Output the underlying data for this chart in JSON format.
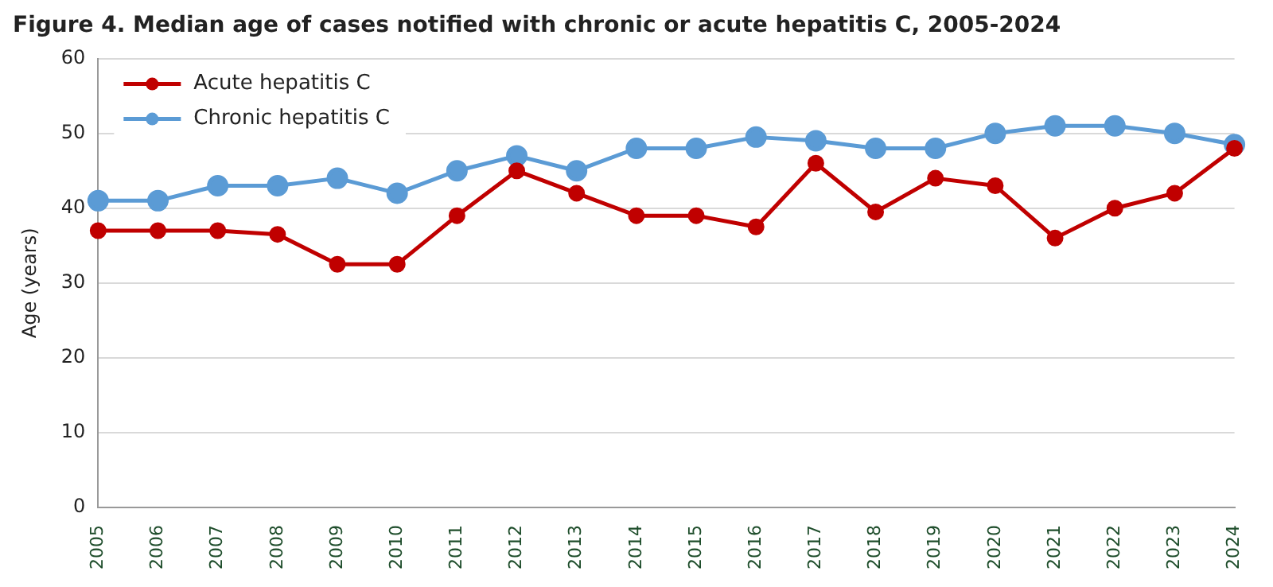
{
  "chart_data": {
    "type": "line",
    "title": "Figure 4. Median age of cases notified with chronic or acute hepatitis C, 2005-2024",
    "ylabel": "Age (years)",
    "categories": [
      "2005",
      "2006",
      "2007",
      "2008",
      "2009",
      "2010",
      "2011",
      "2012",
      "2013",
      "2014",
      "2015",
      "2016",
      "2017",
      "2018",
      "2019",
      "2020",
      "2021",
      "2022",
      "2023",
      "2024"
    ],
    "series": [
      {
        "name": "Acute hepatitis C",
        "color": "#c00000",
        "values": [
          37,
          37,
          37,
          36.5,
          32.5,
          32.5,
          39,
          45,
          42,
          39,
          39,
          37.5,
          46,
          39.5,
          44,
          43,
          36,
          40,
          42,
          48
        ]
      },
      {
        "name": "Chronic hepatitis C",
        "color": "#5b9bd5",
        "values": [
          41,
          41,
          43,
          43,
          44,
          42,
          45,
          47,
          45,
          48,
          48,
          49.5,
          49,
          48,
          48,
          50,
          51,
          51,
          50,
          48.5
        ]
      }
    ],
    "ylim": [
      0,
      60
    ],
    "yticks": [
      0,
      10,
      20,
      30,
      40,
      50,
      60
    ],
    "grid": "y",
    "legend": "top left",
    "marker": "circle",
    "line_style": "solid"
  }
}
